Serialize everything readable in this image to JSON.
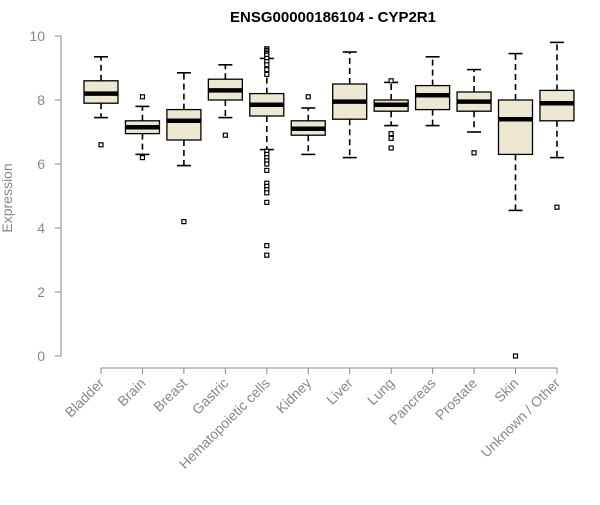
{
  "colors": {
    "box_fill": "#EDE8D1",
    "box_stroke": "#000000",
    "axis": "#888888",
    "title": "#000000"
  },
  "chart_data": {
    "type": "box",
    "title": "ENSG00000186104 - CYP2R1",
    "xlabel": "",
    "ylabel": "Expression",
    "ylim": [
      0,
      10
    ],
    "yticks": [
      0,
      2,
      4,
      6,
      8,
      10
    ],
    "grid": false,
    "categories": [
      "Bladder",
      "Brain",
      "Breast",
      "Gastric",
      "Hematopoietic cells",
      "Kidney",
      "Liver",
      "Lung",
      "Pancreas",
      "Prostate",
      "Skin",
      "Unknown / Other"
    ],
    "boxes": [
      {
        "whisker_low": 7.45,
        "q1": 7.9,
        "median": 8.2,
        "q3": 8.6,
        "whisker_high": 9.35,
        "outliers": [
          6.6
        ]
      },
      {
        "whisker_low": 6.3,
        "q1": 6.95,
        "median": 7.15,
        "q3": 7.35,
        "whisker_high": 7.8,
        "outliers": [
          6.2,
          8.1
        ]
      },
      {
        "whisker_low": 5.95,
        "q1": 6.75,
        "median": 7.35,
        "q3": 7.7,
        "whisker_high": 8.85,
        "outliers": [
          4.2
        ]
      },
      {
        "whisker_low": 7.45,
        "q1": 8.0,
        "median": 8.3,
        "q3": 8.65,
        "whisker_high": 9.1,
        "outliers": [
          6.9
        ]
      },
      {
        "whisker_low": 6.45,
        "q1": 7.5,
        "median": 7.85,
        "q3": 8.2,
        "whisker_high": 9.3,
        "outliers": [
          9.6,
          9.55,
          9.5,
          9.45,
          9.4,
          9.3,
          9.2,
          9.1,
          8.95,
          8.8,
          6.4,
          6.3,
          6.2,
          6.1,
          6.0,
          5.8,
          5.4,
          5.3,
          5.2,
          5.1,
          4.8,
          3.45,
          3.15
        ]
      },
      {
        "whisker_low": 6.3,
        "q1": 6.9,
        "median": 7.1,
        "q3": 7.35,
        "whisker_high": 7.75,
        "outliers": [
          8.1
        ]
      },
      {
        "whisker_low": 6.2,
        "q1": 7.4,
        "median": 7.95,
        "q3": 8.5,
        "whisker_high": 9.5,
        "outliers": []
      },
      {
        "whisker_low": 7.2,
        "q1": 7.65,
        "median": 7.85,
        "q3": 8.0,
        "whisker_high": 8.55,
        "outliers": [
          8.6,
          6.95,
          6.8,
          6.5
        ]
      },
      {
        "whisker_low": 7.2,
        "q1": 7.7,
        "median": 8.15,
        "q3": 8.45,
        "whisker_high": 9.35,
        "outliers": []
      },
      {
        "whisker_low": 7.0,
        "q1": 7.65,
        "median": 7.95,
        "q3": 8.25,
        "whisker_high": 8.95,
        "outliers": [
          6.35
        ]
      },
      {
        "whisker_low": 4.55,
        "q1": 6.3,
        "median": 7.4,
        "q3": 8.0,
        "whisker_high": 9.45,
        "outliers": [
          0.0
        ]
      },
      {
        "whisker_low": 6.2,
        "q1": 7.35,
        "median": 7.9,
        "q3": 8.3,
        "whisker_high": 9.8,
        "outliers": [
          4.65
        ]
      }
    ]
  }
}
